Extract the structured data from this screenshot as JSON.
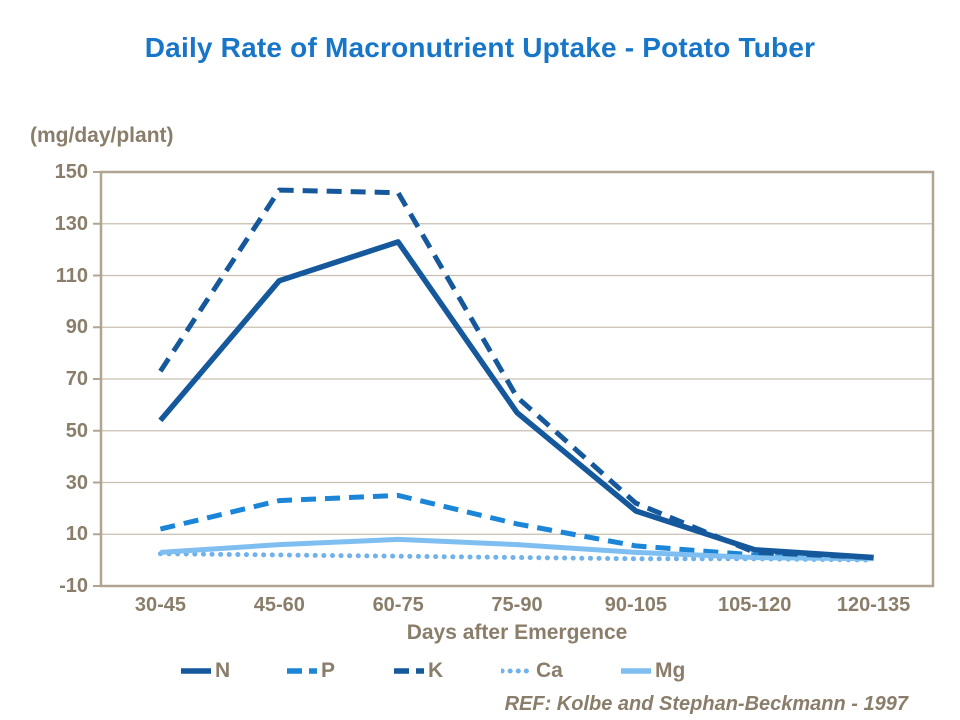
{
  "colors": {
    "title_blue": "#1876C8",
    "axis_text_brown": "#8A7E6B",
    "grid_line": "#C9BFB1",
    "axis_border": "#B0A593",
    "dark_blue": "#15599C",
    "medium_blue": "#1B85D8",
    "light_blue_dot": "#71B2EA",
    "light_blue_solid": "#7FBEF0"
  },
  "chart_data": {
    "type": "line",
    "title": "Daily Rate of Macronutrient Uptake - Potato Tuber",
    "y_unit_label": "(mg/day/plant)",
    "xlabel": "Days after Emergence",
    "ref_note": "REF: Kolbe and Stephan-Beckmann - 1997",
    "categories": [
      "30-45",
      "45-60",
      "60-75",
      "75-90",
      "90-105",
      "105-120",
      "120-135"
    ],
    "y_ticks": [
      150,
      130,
      110,
      90,
      70,
      50,
      30,
      10,
      -10
    ],
    "ylim": [
      -10,
      150
    ],
    "grid": true,
    "legend_position": "bottom",
    "series": [
      {
        "name": "N",
        "color": "#15599C",
        "style": "solid",
        "values": [
          54,
          108,
          123,
          57,
          19,
          4,
          1
        ]
      },
      {
        "name": "P",
        "color": "#1B85D8",
        "style": "dash",
        "values": [
          12,
          23,
          25,
          14,
          5.5,
          2,
          1
        ]
      },
      {
        "name": "K",
        "color": "#15599C",
        "style": "dash",
        "values": [
          73,
          143,
          142,
          63,
          22,
          3,
          1
        ]
      },
      {
        "name": "Ca",
        "color": "#71B2EA",
        "style": "dot",
        "values": [
          2.5,
          2,
          1.5,
          1,
          0.5,
          0.5,
          0
        ]
      },
      {
        "name": "Mg",
        "color": "#7FBEF0",
        "style": "solid",
        "values": [
          3,
          6,
          8,
          6,
          3,
          1,
          0.5
        ]
      }
    ]
  },
  "legend": {
    "items": [
      "N",
      "P",
      "K",
      "Ca",
      "Mg"
    ]
  }
}
